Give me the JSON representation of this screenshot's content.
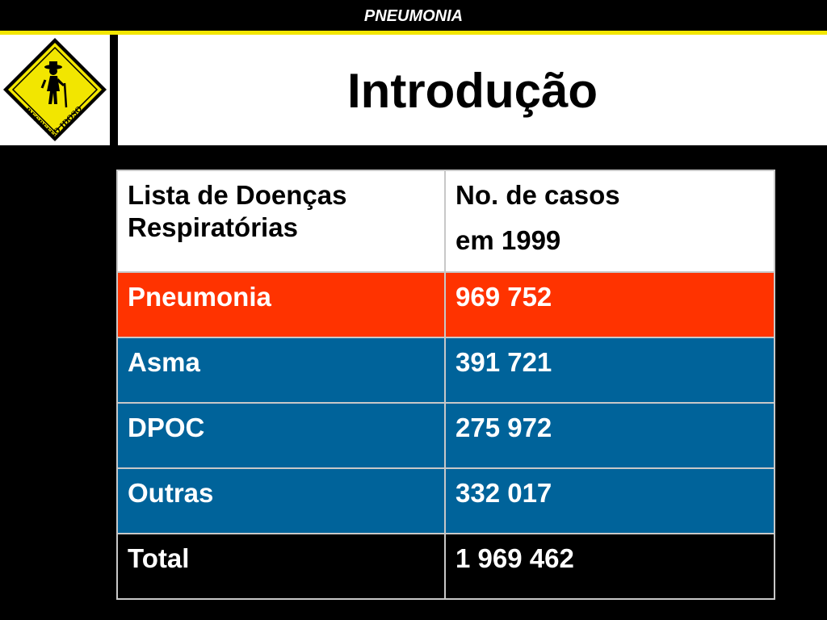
{
  "header": {
    "banner": "PNEUMONIA",
    "title": "Introdução"
  },
  "logo": {
    "icon": "elderly-crossing-sign-icon",
    "text_left": "RESPEITE",
    "text_right": "O IDOSO",
    "color": "#f2e600"
  },
  "table": {
    "headers": [
      [
        "Lista de Doenças",
        "Respiratórias"
      ],
      [
        "No. de casos",
        "em 1999"
      ]
    ],
    "rows": [
      {
        "label": "Pneumonia",
        "value": "969 752"
      },
      {
        "label": "Asma",
        "value": "391 721"
      },
      {
        "label": "DPOC",
        "value": "275 972"
      },
      {
        "label": "Outras",
        "value": "332 017"
      },
      {
        "label": "Total",
        "value": "1 969 462"
      }
    ]
  },
  "colors": {
    "highlight_row": "#ff3300",
    "blue_rows": "#00639a",
    "accent_line": "#f2e600",
    "background": "#000000"
  }
}
